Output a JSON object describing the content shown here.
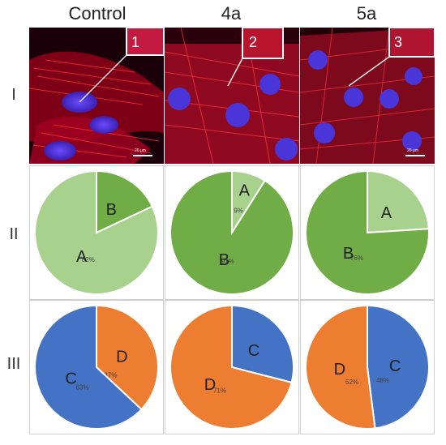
{
  "columns": [
    "Control",
    "4a",
    "5a"
  ],
  "row_labels": [
    "I",
    "II",
    "III"
  ],
  "micrographs": [
    {
      "inset_number": "1",
      "scale_label": "20 μm"
    },
    {
      "inset_number": "2",
      "scale_label": ""
    },
    {
      "inset_number": "3",
      "scale_label": "20 μm"
    }
  ],
  "colors": {
    "A": "#a9d18e",
    "B": "#70ad47",
    "C": "#4472c4",
    "D": "#ed7d31"
  },
  "chart_data": [
    {
      "type": "pie",
      "row": "II",
      "column": "Control",
      "slices": [
        {
          "name": "A",
          "value": 82,
          "label": "82%"
        },
        {
          "name": "B",
          "value": 18,
          "label": "18%"
        }
      ]
    },
    {
      "type": "pie",
      "row": "II",
      "column": "4a",
      "slices": [
        {
          "name": "A",
          "value": 9,
          "label": "9%"
        },
        {
          "name": "B",
          "value": 91,
          "label": "91%"
        }
      ]
    },
    {
      "type": "pie",
      "row": "II",
      "column": "5a",
      "slices": [
        {
          "name": "A",
          "value": 24,
          "label": "24%"
        },
        {
          "name": "B",
          "value": 76,
          "label": "76%"
        }
      ]
    },
    {
      "type": "pie",
      "row": "III",
      "column": "Control",
      "slices": [
        {
          "name": "C",
          "value": 63,
          "label": "63%"
        },
        {
          "name": "D",
          "value": 37,
          "label": "37%"
        }
      ]
    },
    {
      "type": "pie",
      "row": "III",
      "column": "4a",
      "slices": [
        {
          "name": "C",
          "value": 29,
          "label": "29%"
        },
        {
          "name": "D",
          "value": 71,
          "label": "71%"
        }
      ]
    },
    {
      "type": "pie",
      "row": "III",
      "column": "5a",
      "slices": [
        {
          "name": "C",
          "value": 48,
          "label": "48%"
        },
        {
          "name": "D",
          "value": 52,
          "label": "52%"
        }
      ]
    }
  ]
}
